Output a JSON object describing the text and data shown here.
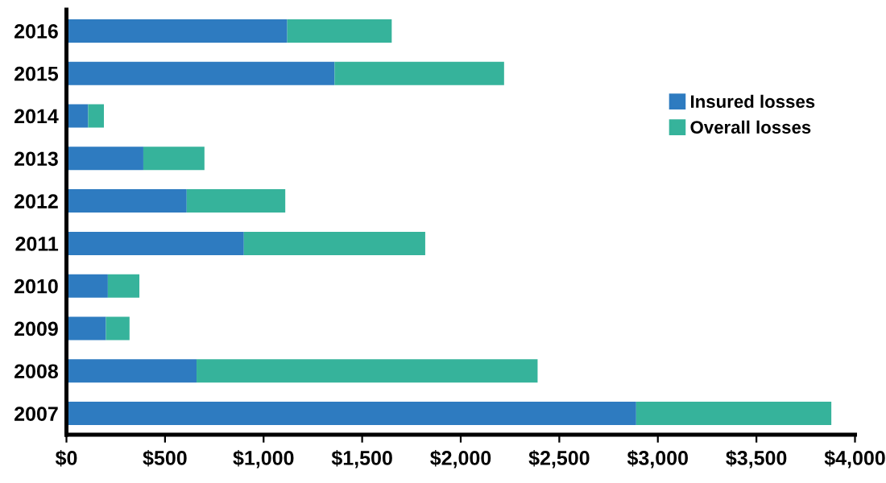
{
  "chart_data": {
    "type": "bar",
    "orientation": "horizontal",
    "stacked": true,
    "categories": [
      "2016",
      "2015",
      "2014",
      "2013",
      "2012",
      "2011",
      "2010",
      "2009",
      "2008",
      "2007"
    ],
    "series": [
      {
        "name": "Insured losses",
        "color": "#2e7bc0",
        "values": [
          1120,
          1360,
          110,
          390,
          610,
          900,
          210,
          200,
          660,
          2890
        ]
      },
      {
        "name": "Overall losses",
        "color": "#36b39b",
        "values": [
          530,
          860,
          80,
          310,
          500,
          920,
          160,
          120,
          1730,
          990
        ]
      }
    ],
    "xlim": [
      0,
      4000
    ],
    "xticks": [
      {
        "value": 0,
        "label": "$0"
      },
      {
        "value": 500,
        "label": "$500"
      },
      {
        "value": 1000,
        "label": "$1,000"
      },
      {
        "value": 1500,
        "label": "$1,500"
      },
      {
        "value": 2000,
        "label": "$2,000"
      },
      {
        "value": 2500,
        "label": "$2,500"
      },
      {
        "value": 3000,
        "label": "$3,000"
      },
      {
        "value": 3500,
        "label": "$3,500"
      },
      {
        "value": 4000,
        "label": "$4,000"
      }
    ],
    "legend": "right",
    "grid": false
  }
}
